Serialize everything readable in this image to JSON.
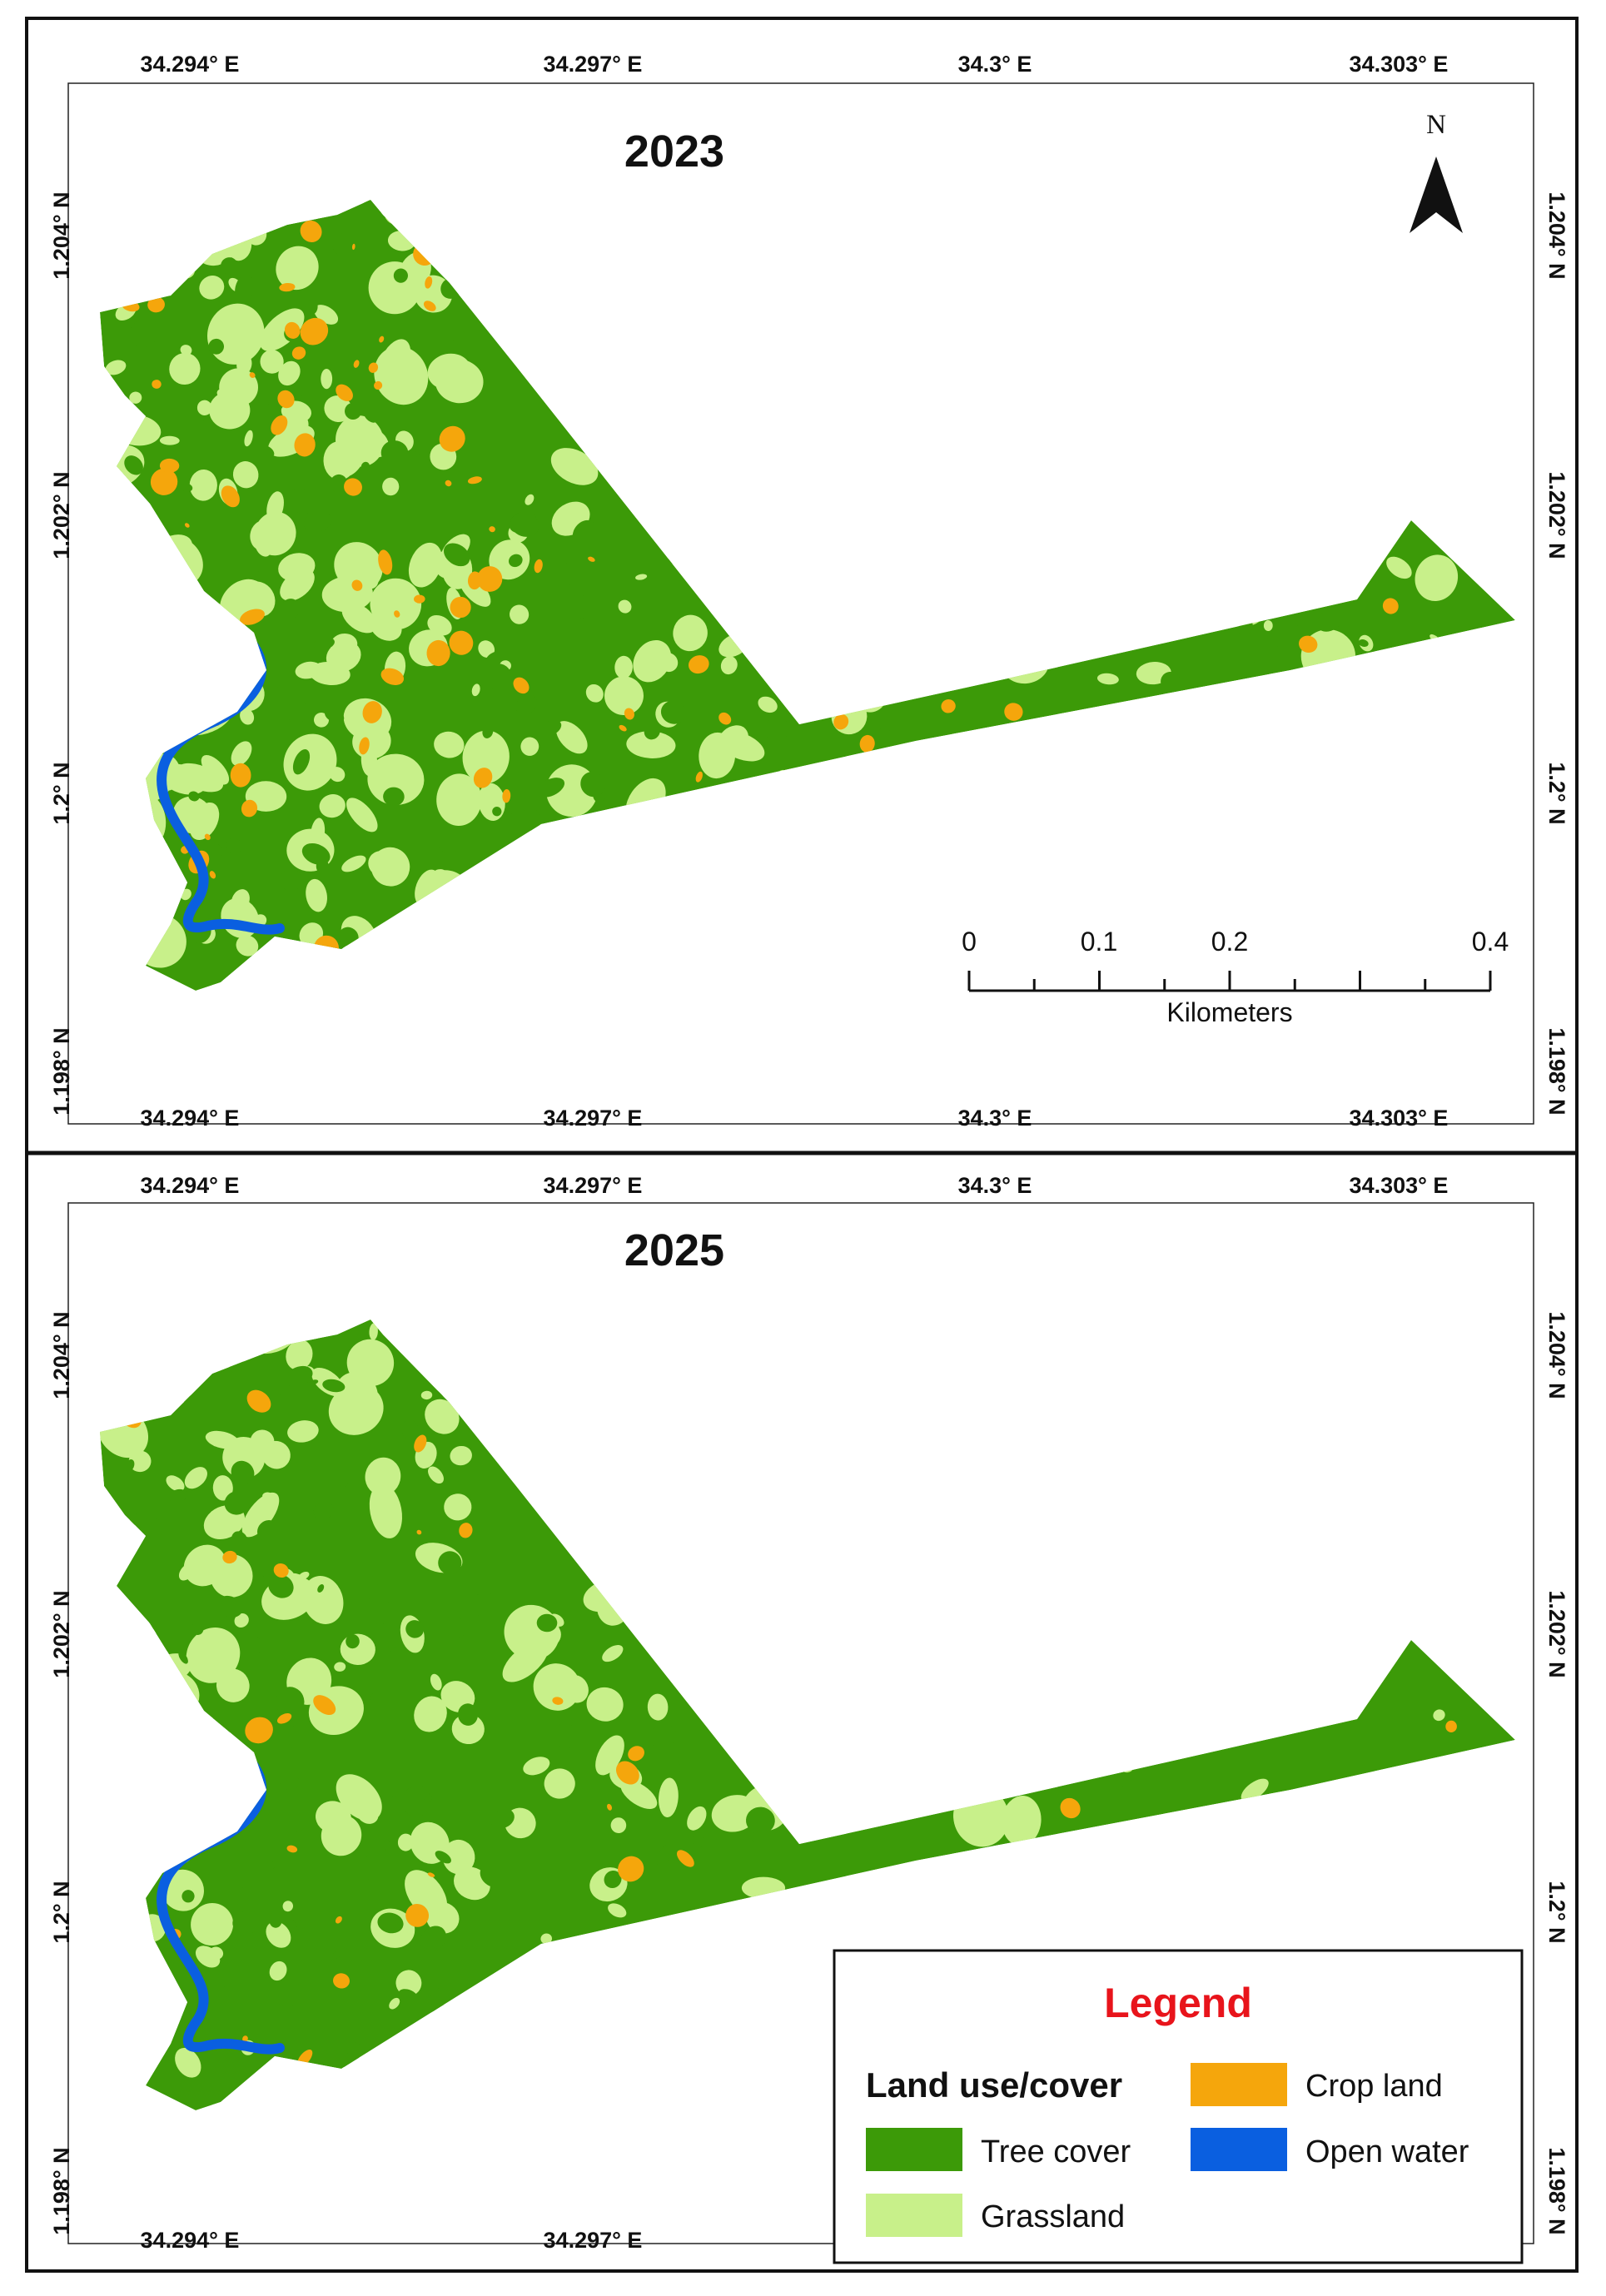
{
  "colors": {
    "tree_cover": "#3c9a08",
    "grassland": "#c8f08a",
    "crop_land": "#f5a60c",
    "open_water": "#0a5fe0",
    "legend_title": "#e8141b",
    "frame": "#111111"
  },
  "ticks": {
    "lon": [
      "34.294° E",
      "34.297° E",
      "34.3° E",
      "34.303° E"
    ],
    "lat": [
      "1.204° N",
      "1.202° N",
      "1.2° N",
      "1.198° N"
    ]
  },
  "panels": [
    {
      "title": "2023",
      "land_cover_mix": {
        "tree_cover": 0.62,
        "grassland": 0.27,
        "crop_land": 0.09,
        "open_water": 0.02
      }
    },
    {
      "title": "2025",
      "land_cover_mix": {
        "tree_cover": 0.76,
        "grassland": 0.19,
        "crop_land": 0.03,
        "open_water": 0.02
      }
    }
  ],
  "north_arrow": {
    "label": "N"
  },
  "scale_bar": {
    "labels": [
      "0",
      "0.1",
      "0.2",
      "0.4"
    ],
    "unit": "Kilometers",
    "max_km": 0.4
  },
  "legend": {
    "title": "Legend",
    "heading": "Land use/cover",
    "items": [
      {
        "key": "tree_cover",
        "label": "Tree cover"
      },
      {
        "key": "grassland",
        "label": "Grassland"
      },
      {
        "key": "crop_land",
        "label": "Crop land"
      },
      {
        "key": "open_water",
        "label": "Open water"
      }
    ]
  }
}
